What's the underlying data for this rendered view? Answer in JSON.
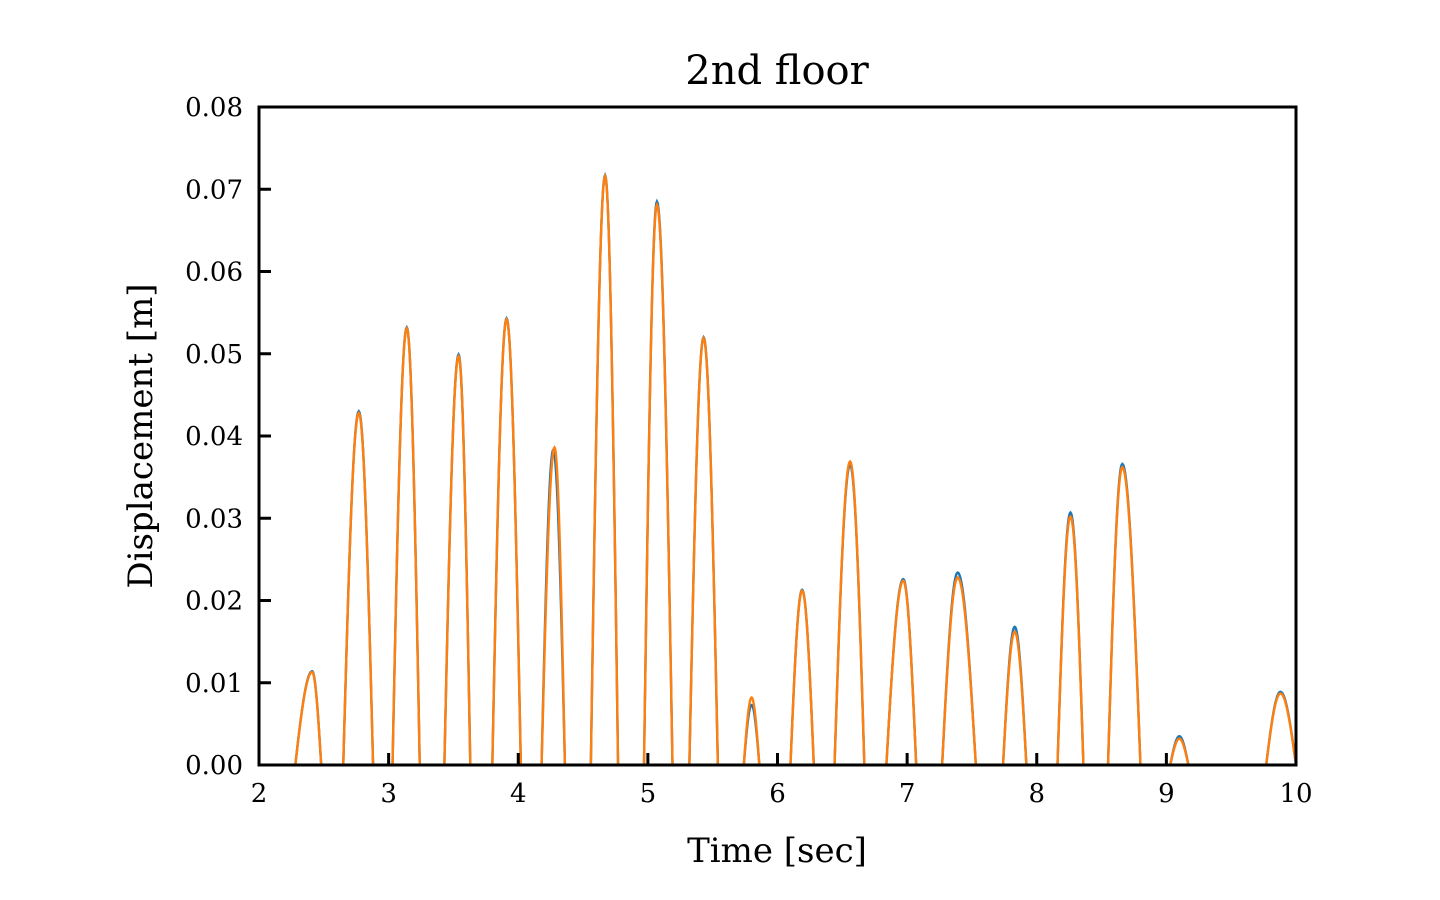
{
  "chart_data": {
    "type": "line",
    "title": "2nd floor",
    "xlabel": "Time [sec]",
    "ylabel": "Displacement [m]",
    "xlim": [
      2,
      10
    ],
    "ylim": [
      0,
      0.08
    ],
    "grid": false,
    "x_ticks": [
      "2",
      "3",
      "4",
      "5",
      "6",
      "7",
      "8",
      "9",
      "10"
    ],
    "y_ticks": [
      "0.00",
      "0.01",
      "0.02",
      "0.03",
      "0.04",
      "0.05",
      "0.06",
      "0.07",
      "0.08"
    ],
    "colors": {
      "series_1": "#1f77b4",
      "series_2": "#ff7f0e",
      "axis": "#000000"
    },
    "series": [
      {
        "peaks": [
          [
            2.28,
            2.41,
            2.48,
            0.0114
          ],
          [
            2.65,
            2.77,
            2.88,
            0.043
          ],
          [
            3.03,
            3.14,
            3.24,
            0.0532
          ],
          [
            3.43,
            3.54,
            3.63,
            0.0499
          ],
          [
            3.8,
            3.91,
            4.02,
            0.0543
          ],
          [
            4.18,
            4.27,
            4.36,
            0.0383
          ],
          [
            4.56,
            4.67,
            4.77,
            0.0717
          ],
          [
            4.97,
            5.07,
            5.19,
            0.0685
          ],
          [
            5.32,
            5.43,
            5.54,
            0.052
          ],
          [
            5.74,
            5.8,
            5.86,
            0.0073
          ],
          [
            6.1,
            6.19,
            6.28,
            0.0213
          ],
          [
            6.44,
            6.56,
            6.67,
            0.0365
          ],
          [
            6.84,
            6.97,
            7.07,
            0.0226
          ],
          [
            7.27,
            7.39,
            7.53,
            0.0234
          ],
          [
            7.74,
            7.83,
            7.92,
            0.0168
          ],
          [
            8.16,
            8.26,
            8.36,
            0.0307
          ],
          [
            8.55,
            8.66,
            8.8,
            0.0366
          ],
          [
            9.03,
            9.1,
            9.17,
            0.0035
          ],
          [
            9.77,
            9.88,
            10.0,
            0.0089
          ]
        ]
      },
      {
        "peaks": [
          [
            2.28,
            2.41,
            2.48,
            0.0113
          ],
          [
            2.65,
            2.77,
            2.88,
            0.0428
          ],
          [
            3.03,
            3.14,
            3.24,
            0.0531
          ],
          [
            3.43,
            3.54,
            3.63,
            0.0497
          ],
          [
            3.8,
            3.91,
            4.02,
            0.0542
          ],
          [
            4.18,
            4.28,
            4.36,
            0.0386
          ],
          [
            4.56,
            4.67,
            4.77,
            0.0716
          ],
          [
            4.97,
            5.07,
            5.19,
            0.0681
          ],
          [
            5.32,
            5.43,
            5.54,
            0.0519
          ],
          [
            5.74,
            5.8,
            5.86,
            0.0082
          ],
          [
            6.1,
            6.19,
            6.28,
            0.0212
          ],
          [
            6.44,
            6.56,
            6.67,
            0.0369
          ],
          [
            6.84,
            6.97,
            7.07,
            0.0224
          ],
          [
            7.27,
            7.39,
            7.53,
            0.0228
          ],
          [
            7.74,
            7.83,
            7.92,
            0.0162
          ],
          [
            8.16,
            8.26,
            8.36,
            0.0302
          ],
          [
            8.55,
            8.66,
            8.8,
            0.0362
          ],
          [
            9.03,
            9.1,
            9.17,
            0.0032
          ],
          [
            9.77,
            9.88,
            10.0,
            0.0087
          ]
        ]
      }
    ]
  }
}
